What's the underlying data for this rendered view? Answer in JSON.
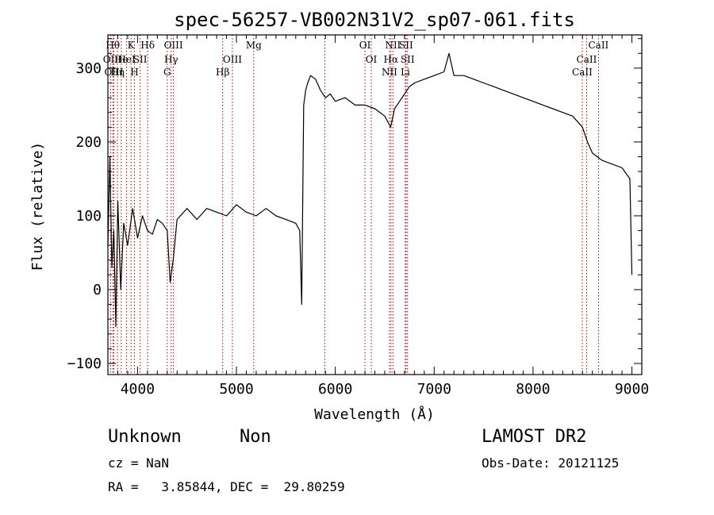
{
  "chart_data": {
    "type": "line",
    "title": "spec-56257-VB002N31V2_sp07-061.fits",
    "xlabel": "Wavelength (Å)",
    "ylabel": "Flux (relative)",
    "xlim": [
      3700,
      9100
    ],
    "ylim": [
      -115,
      345
    ],
    "xticks": [
      4000,
      5000,
      6000,
      7000,
      8000,
      9000
    ],
    "yticks": [
      -100,
      0,
      100,
      200,
      300
    ],
    "xtick_labels": [
      "4000",
      "5000",
      "6000",
      "7000",
      "8000",
      "9000"
    ],
    "ytick_labels": [
      "−100",
      "0",
      "100",
      "200",
      "300"
    ],
    "series": [
      {
        "color": "#000000",
        "x": [
          3700,
          3720,
          3740,
          3760,
          3780,
          3800,
          3830,
          3860,
          3900,
          3950,
          4000,
          4050,
          4100,
          4150,
          4200,
          4250,
          4300,
          4330,
          4360,
          4400,
          4500,
          4600,
          4700,
          4800,
          4900,
          5000,
          5100,
          5200,
          5300,
          5400,
          5500,
          5600,
          5640,
          5660,
          5680,
          5700,
          5720,
          5750,
          5800,
          5850,
          5900,
          5950,
          6000,
          6100,
          6200,
          6300,
          6400,
          6500,
          6560,
          6600,
          6650,
          6700,
          6750,
          6800,
          6900,
          7000,
          7100,
          7150,
          7200,
          7300,
          7400,
          7500,
          7600,
          7700,
          7800,
          7900,
          8000,
          8100,
          8200,
          8300,
          8400,
          8500,
          8550,
          8600,
          8650,
          8700,
          8800,
          8900,
          8980,
          9000
        ],
        "y": [
          60,
          180,
          30,
          80,
          -50,
          120,
          0,
          90,
          60,
          110,
          70,
          100,
          80,
          75,
          95,
          90,
          80,
          10,
          40,
          95,
          110,
          95,
          110,
          105,
          100,
          115,
          105,
          100,
          110,
          100,
          95,
          90,
          80,
          -20,
          250,
          270,
          280,
          290,
          285,
          270,
          260,
          265,
          255,
          260,
          250,
          250,
          245,
          235,
          220,
          245,
          255,
          265,
          275,
          280,
          285,
          290,
          295,
          320,
          290,
          290,
          285,
          280,
          275,
          270,
          265,
          260,
          255,
          250,
          245,
          240,
          235,
          220,
          200,
          185,
          180,
          175,
          170,
          165,
          150,
          20
        ]
      }
    ],
    "spectral_lines": [
      {
        "x": 3727,
        "label": "OII",
        "row": 1
      },
      {
        "x": 3750,
        "label": "Hθ",
        "row": 0
      },
      {
        "x": 3760,
        "label": "OIII",
        "row": 2
      },
      {
        "x": 3797,
        "label": "Hη",
        "row": 2
      },
      {
        "x": 3835,
        "label": "He",
        "row": 1
      },
      {
        "x": 3889,
        "label": "HeI",
        "row": 1
      },
      {
        "x": 3934,
        "label": "K",
        "row": 0
      },
      {
        "x": 3969,
        "label": "H",
        "row": 2
      },
      {
        "x": 4026,
        "label": "SII",
        "row": 1
      },
      {
        "x": 4102,
        "label": "Hδ",
        "row": 0
      },
      {
        "x": 4300,
        "label": "G",
        "row": 2
      },
      {
        "x": 4340,
        "label": "Hγ",
        "row": 1
      },
      {
        "x": 4363,
        "label": "OIII",
        "row": 0
      },
      {
        "x": 4861,
        "label": "Hβ",
        "row": 2
      },
      {
        "x": 4959,
        "label": "OIII",
        "row": 1
      },
      {
        "x": 5175,
        "label": "Mg",
        "row": 0
      },
      {
        "x": 5893,
        "label": "",
        "row": -1
      },
      {
        "x": 6300,
        "label": "OI",
        "row": 0
      },
      {
        "x": 6364,
        "label": "OI",
        "row": 1
      },
      {
        "x": 6548,
        "label": "NII",
        "row": 2
      },
      {
        "x": 6563,
        "label": "Hα",
        "row": 1
      },
      {
        "x": 6583,
        "label": "NII",
        "row": 0
      },
      {
        "x": 6708,
        "label": "Li",
        "row": 2
      },
      {
        "x": 6716,
        "label": "SII",
        "row": 0
      },
      {
        "x": 6731,
        "label": "SII",
        "row": 1
      },
      {
        "x": 8498,
        "label": "CaII",
        "row": 2
      },
      {
        "x": 8542,
        "label": "CaII",
        "row": 1
      },
      {
        "x": 8662,
        "label": "CaII",
        "row": 0
      }
    ],
    "line_color": "#aa0000"
  },
  "info": {
    "class": "Unknown",
    "subclass": "Non",
    "survey": "LAMOST DR2",
    "cz": "cz = NaN",
    "obs_date": "Obs-Date: 20121125",
    "coords": "RA =   3.85844, DEC =  29.80259"
  }
}
